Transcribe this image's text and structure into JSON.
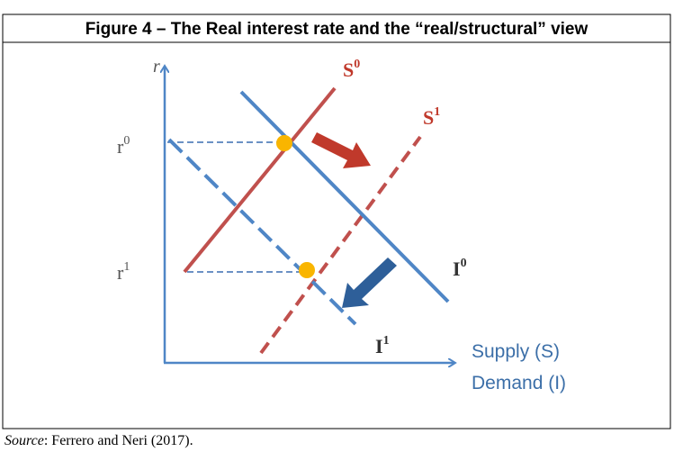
{
  "figure": {
    "title": "Figure 4 – The Real interest rate and the “real/structural” view",
    "source": {
      "label": "Source",
      "text": ": Ferrero and Neri (2017)."
    }
  },
  "diagram": {
    "y_axis_label": "r",
    "rates": [
      {
        "base": "r",
        "sup": "0"
      },
      {
        "base": "r",
        "sup": "1"
      }
    ],
    "supply_curves": [
      {
        "base": "S",
        "sup": "0"
      },
      {
        "base": "S",
        "sup": "1"
      }
    ],
    "demand_curves": [
      {
        "base": "I",
        "sup": "0"
      },
      {
        "base": "I",
        "sup": "1"
      }
    ],
    "x_axis_labels": [
      "Supply (S)",
      "Demand (I)"
    ]
  }
}
